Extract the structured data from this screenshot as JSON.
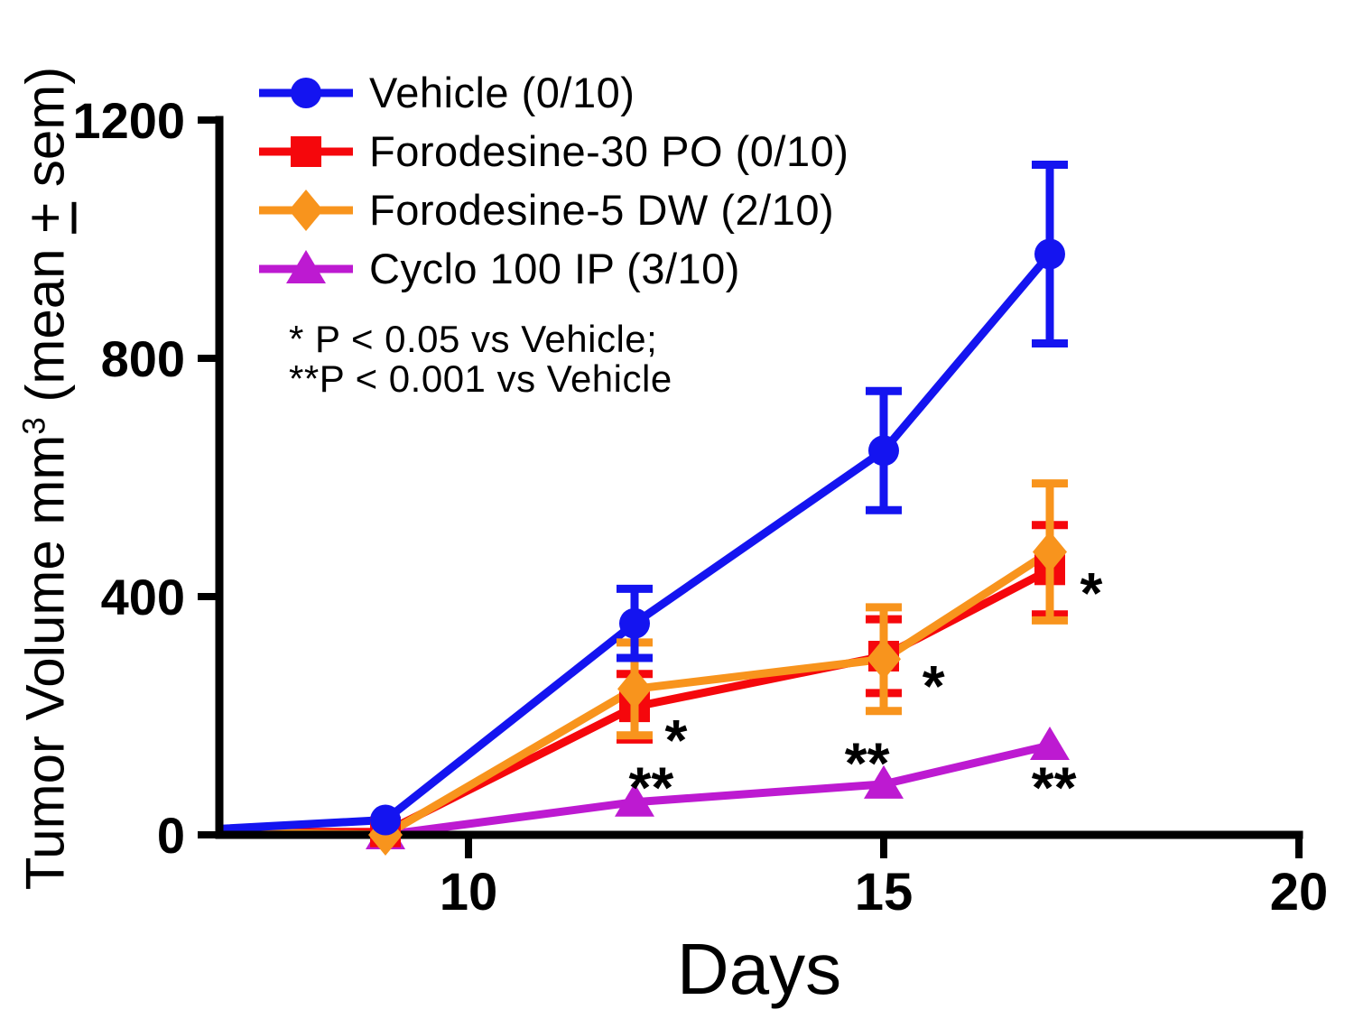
{
  "figure": {
    "ylabel": {
      "main": "Tumor Volume mm",
      "sup": "3",
      "pre": " (mean ",
      "pm": "+",
      "post": " sem)"
    }
  },
  "chart_data": {
    "type": "line",
    "title": "",
    "xlabel": "Days",
    "ylabel": "Tumor Volume mm3 (mean ± sem)",
    "xlim": [
      7,
      20
    ],
    "ylim": [
      0,
      1200
    ],
    "xticks": [
      10,
      15,
      20
    ],
    "yticks": [
      0,
      400,
      800,
      1200
    ],
    "grid": false,
    "legend_position": "top-left-inside",
    "axis_color": "#000000",
    "series": [
      {
        "name": "Vehicle (0/10)",
        "color": "#1414f0",
        "marker": "circle",
        "x": [
          7,
          9,
          12,
          15,
          17
        ],
        "values": [
          10,
          25,
          355,
          645,
          975
        ],
        "sem": [
          0,
          0,
          58,
          100,
          150
        ]
      },
      {
        "name": "Forodesine-30 PO (0/10)",
        "color": "#f5070c",
        "marker": "square",
        "x": [
          7,
          9,
          12,
          15,
          17
        ],
        "values": [
          5,
          5,
          215,
          300,
          445
        ],
        "sem": [
          0,
          0,
          55,
          62,
          75
        ]
      },
      {
        "name": "Forodesine-5 DW (2/10)",
        "color": "#f8941d",
        "marker": "diamond",
        "x": [
          7,
          9,
          12,
          15,
          17
        ],
        "values": [
          5,
          0,
          245,
          295,
          475
        ],
        "sem": [
          0,
          0,
          78,
          87,
          115
        ]
      },
      {
        "name": "Cyclo 100 IP (3/10)",
        "color": "#bd1ad1",
        "marker": "triangle",
        "x": [
          7,
          9,
          12,
          15,
          17
        ],
        "values": [
          0,
          0,
          55,
          85,
          150
        ],
        "sem": [
          0,
          0,
          0,
          0,
          0
        ]
      }
    ],
    "annotations": [
      {
        "x": 12.5,
        "y": 177,
        "text": "*"
      },
      {
        "x": 12.2,
        "y": 98,
        "text": "**"
      },
      {
        "x": 15.6,
        "y": 268,
        "text": "*"
      },
      {
        "x": 14.8,
        "y": 139,
        "text": "**"
      },
      {
        "x": 17.5,
        "y": 424,
        "text": "*"
      },
      {
        "x": 17.05,
        "y": 98,
        "text": "**"
      }
    ],
    "stat_note": [
      "* P < 0.05 vs Vehicle;",
      "**P < 0.001 vs Vehicle"
    ]
  }
}
